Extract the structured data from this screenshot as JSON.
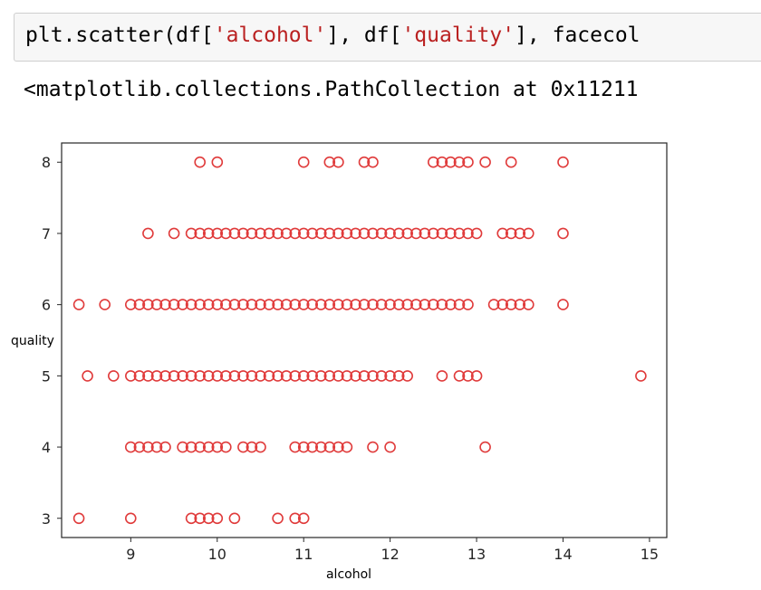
{
  "cell": {
    "code_segments": [
      {
        "text": "plt.scatter(df[",
        "kind": "plain"
      },
      {
        "text": "'alcohol'",
        "kind": "string"
      },
      {
        "text": "], df[",
        "kind": "plain"
      },
      {
        "text": "'quality'",
        "kind": "string"
      },
      {
        "text": "], facecol",
        "kind": "plain"
      }
    ],
    "output_text": "<matplotlib.collections.PathCollection at 0x11211"
  },
  "colors": {
    "marker": "#e03b3b",
    "axes": "#262626",
    "code_string": "#ba2121"
  },
  "chart_data": {
    "type": "scatter",
    "xlabel": "alcohol",
    "ylabel": "quality",
    "xlim": [
      8.2,
      15.2
    ],
    "ylim": [
      2.73,
      8.27
    ],
    "xticks": [
      9,
      10,
      11,
      12,
      13,
      14,
      15
    ],
    "yticks": [
      3,
      4,
      5,
      6,
      7,
      8
    ],
    "marker": "hollow-circle",
    "series": [
      {
        "points": [
          [
            9.8,
            8
          ],
          [
            10.0,
            8
          ],
          [
            11.0,
            8
          ],
          [
            11.3,
            8
          ],
          [
            11.4,
            8
          ],
          [
            11.7,
            8
          ],
          [
            11.8,
            8
          ],
          [
            12.5,
            8
          ],
          [
            12.6,
            8
          ],
          [
            12.7,
            8
          ],
          [
            12.8,
            8
          ],
          [
            12.9,
            8
          ],
          [
            13.1,
            8
          ],
          [
            13.4,
            8
          ],
          [
            14.0,
            8
          ],
          [
            9.2,
            7
          ],
          [
            9.5,
            7
          ],
          [
            9.7,
            7
          ],
          [
            9.8,
            7
          ],
          [
            9.9,
            7
          ],
          [
            10.0,
            7
          ],
          [
            10.1,
            7
          ],
          [
            10.2,
            7
          ],
          [
            10.3,
            7
          ],
          [
            10.4,
            7
          ],
          [
            10.5,
            7
          ],
          [
            10.6,
            7
          ],
          [
            10.7,
            7
          ],
          [
            10.8,
            7
          ],
          [
            10.9,
            7
          ],
          [
            11.0,
            7
          ],
          [
            11.1,
            7
          ],
          [
            11.2,
            7
          ],
          [
            11.3,
            7
          ],
          [
            11.4,
            7
          ],
          [
            11.5,
            7
          ],
          [
            11.6,
            7
          ],
          [
            11.7,
            7
          ],
          [
            11.8,
            7
          ],
          [
            11.9,
            7
          ],
          [
            12.0,
            7
          ],
          [
            12.1,
            7
          ],
          [
            12.2,
            7
          ],
          [
            12.3,
            7
          ],
          [
            12.4,
            7
          ],
          [
            12.5,
            7
          ],
          [
            12.6,
            7
          ],
          [
            12.7,
            7
          ],
          [
            12.8,
            7
          ],
          [
            12.9,
            7
          ],
          [
            13.0,
            7
          ],
          [
            13.3,
            7
          ],
          [
            13.4,
            7
          ],
          [
            13.5,
            7
          ],
          [
            13.6,
            7
          ],
          [
            14.0,
            7
          ],
          [
            8.4,
            6
          ],
          [
            8.7,
            6
          ],
          [
            9.0,
            6
          ],
          [
            9.1,
            6
          ],
          [
            9.2,
            6
          ],
          [
            9.3,
            6
          ],
          [
            9.4,
            6
          ],
          [
            9.5,
            6
          ],
          [
            9.6,
            6
          ],
          [
            9.7,
            6
          ],
          [
            9.8,
            6
          ],
          [
            9.9,
            6
          ],
          [
            10.0,
            6
          ],
          [
            10.1,
            6
          ],
          [
            10.2,
            6
          ],
          [
            10.3,
            6
          ],
          [
            10.4,
            6
          ],
          [
            10.5,
            6
          ],
          [
            10.6,
            6
          ],
          [
            10.7,
            6
          ],
          [
            10.8,
            6
          ],
          [
            10.9,
            6
          ],
          [
            11.0,
            6
          ],
          [
            11.1,
            6
          ],
          [
            11.2,
            6
          ],
          [
            11.3,
            6
          ],
          [
            11.4,
            6
          ],
          [
            11.5,
            6
          ],
          [
            11.6,
            6
          ],
          [
            11.7,
            6
          ],
          [
            11.8,
            6
          ],
          [
            11.9,
            6
          ],
          [
            12.0,
            6
          ],
          [
            12.1,
            6
          ],
          [
            12.2,
            6
          ],
          [
            12.3,
            6
          ],
          [
            12.4,
            6
          ],
          [
            12.5,
            6
          ],
          [
            12.6,
            6
          ],
          [
            12.7,
            6
          ],
          [
            12.8,
            6
          ],
          [
            12.9,
            6
          ],
          [
            13.2,
            6
          ],
          [
            13.3,
            6
          ],
          [
            13.4,
            6
          ],
          [
            13.5,
            6
          ],
          [
            13.6,
            6
          ],
          [
            14.0,
            6
          ],
          [
            8.5,
            5
          ],
          [
            8.8,
            5
          ],
          [
            9.0,
            5
          ],
          [
            9.1,
            5
          ],
          [
            9.2,
            5
          ],
          [
            9.3,
            5
          ],
          [
            9.4,
            5
          ],
          [
            9.5,
            5
          ],
          [
            9.6,
            5
          ],
          [
            9.7,
            5
          ],
          [
            9.8,
            5
          ],
          [
            9.9,
            5
          ],
          [
            10.0,
            5
          ],
          [
            10.1,
            5
          ],
          [
            10.2,
            5
          ],
          [
            10.3,
            5
          ],
          [
            10.4,
            5
          ],
          [
            10.5,
            5
          ],
          [
            10.6,
            5
          ],
          [
            10.7,
            5
          ],
          [
            10.8,
            5
          ],
          [
            10.9,
            5
          ],
          [
            11.0,
            5
          ],
          [
            11.1,
            5
          ],
          [
            11.2,
            5
          ],
          [
            11.3,
            5
          ],
          [
            11.4,
            5
          ],
          [
            11.5,
            5
          ],
          [
            11.6,
            5
          ],
          [
            11.7,
            5
          ],
          [
            11.8,
            5
          ],
          [
            11.9,
            5
          ],
          [
            12.0,
            5
          ],
          [
            12.1,
            5
          ],
          [
            12.2,
            5
          ],
          [
            12.6,
            5
          ],
          [
            12.8,
            5
          ],
          [
            12.9,
            5
          ],
          [
            13.0,
            5
          ],
          [
            14.9,
            5
          ],
          [
            9.0,
            4
          ],
          [
            9.1,
            4
          ],
          [
            9.2,
            4
          ],
          [
            9.3,
            4
          ],
          [
            9.4,
            4
          ],
          [
            9.6,
            4
          ],
          [
            9.7,
            4
          ],
          [
            9.8,
            4
          ],
          [
            9.9,
            4
          ],
          [
            10.0,
            4
          ],
          [
            10.1,
            4
          ],
          [
            10.3,
            4
          ],
          [
            10.4,
            4
          ],
          [
            10.5,
            4
          ],
          [
            10.9,
            4
          ],
          [
            11.0,
            4
          ],
          [
            11.1,
            4
          ],
          [
            11.2,
            4
          ],
          [
            11.3,
            4
          ],
          [
            11.4,
            4
          ],
          [
            11.5,
            4
          ],
          [
            11.8,
            4
          ],
          [
            12.0,
            4
          ],
          [
            13.1,
            4
          ],
          [
            8.4,
            3
          ],
          [
            9.0,
            3
          ],
          [
            9.7,
            3
          ],
          [
            9.8,
            3
          ],
          [
            9.9,
            3
          ],
          [
            10.0,
            3
          ],
          [
            10.2,
            3
          ],
          [
            10.7,
            3
          ],
          [
            10.9,
            3
          ],
          [
            11.0,
            3
          ]
        ]
      }
    ]
  }
}
